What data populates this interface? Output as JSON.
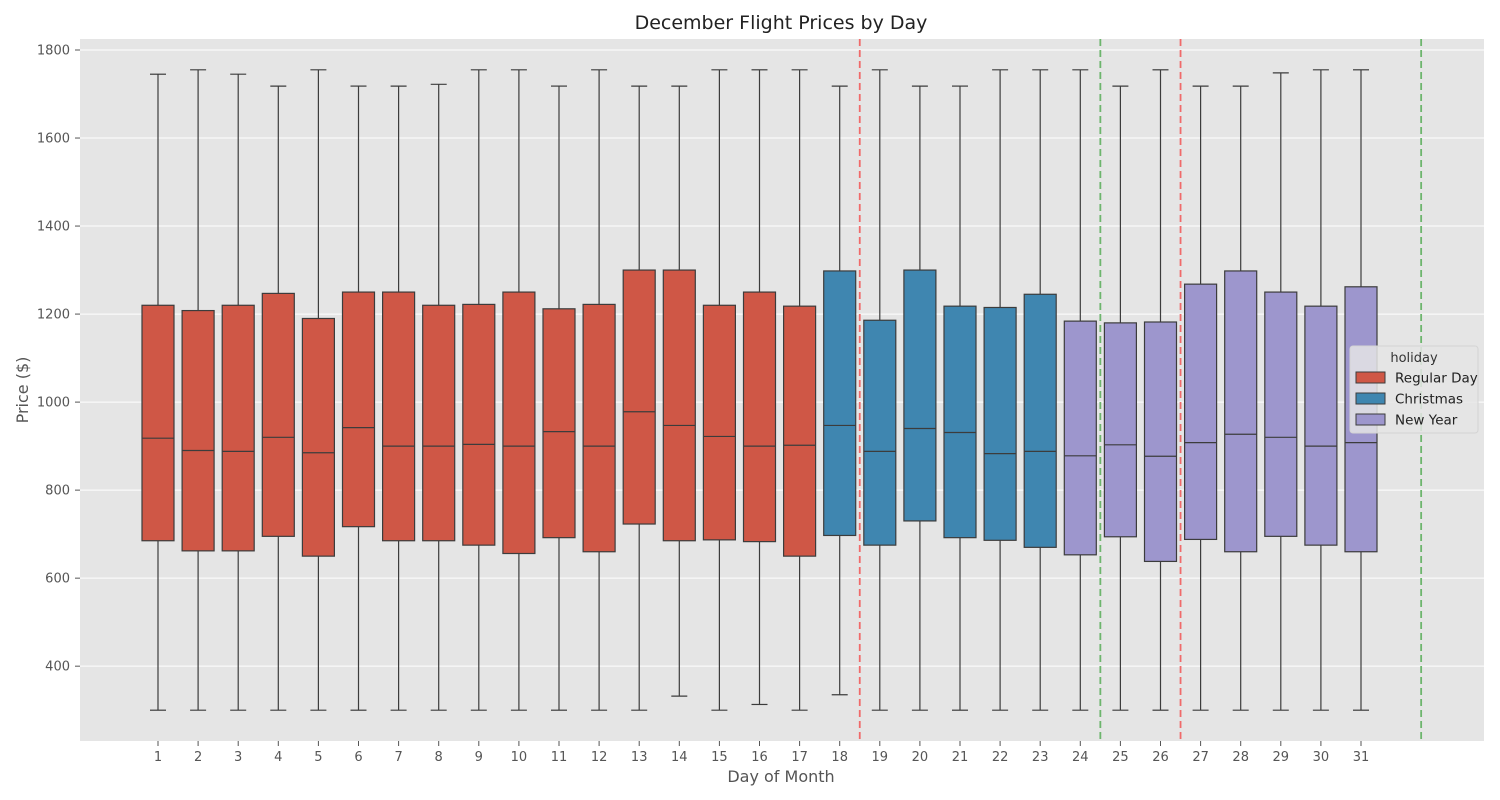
{
  "chart_data": {
    "type": "box",
    "title": "December Flight Prices by Day",
    "xlabel": "Day of Month",
    "ylabel": "Price ($)",
    "ylim": [
      230,
      1825
    ],
    "yticks": [
      400,
      600,
      800,
      1000,
      1200,
      1400,
      1600,
      1800
    ],
    "grid": true,
    "legend": {
      "title": "holiday",
      "placement": "right",
      "entries": [
        "Regular Day",
        "Christmas",
        "New Year"
      ]
    },
    "group_colors": {
      "Regular Day": "#cf5746",
      "Christmas": "#3f86b0",
      "New Year": "#9d96cd"
    },
    "reference_lines": [
      {
        "x": 18.5,
        "color": "#f06a6a"
      },
      {
        "x": 24.5,
        "color": "#6db56d"
      },
      {
        "x": 26.5,
        "color": "#f06a6a"
      },
      {
        "x": 32.5,
        "color": "#6db56d"
      }
    ],
    "boxes": [
      {
        "day": "1",
        "group": "Regular Day",
        "min": 300,
        "q1": 685,
        "median": 918,
        "q3": 1220,
        "max": 1745
      },
      {
        "day": "2",
        "group": "Regular Day",
        "min": 300,
        "q1": 662,
        "median": 890,
        "q3": 1208,
        "max": 1755
      },
      {
        "day": "3",
        "group": "Regular Day",
        "min": 300,
        "q1": 662,
        "median": 888,
        "q3": 1220,
        "max": 1745
      },
      {
        "day": "4",
        "group": "Regular Day",
        "min": 300,
        "q1": 695,
        "median": 920,
        "q3": 1247,
        "max": 1718
      },
      {
        "day": "5",
        "group": "Regular Day",
        "min": 300,
        "q1": 650,
        "median": 885,
        "q3": 1190,
        "max": 1755
      },
      {
        "day": "6",
        "group": "Regular Day",
        "min": 300,
        "q1": 717,
        "median": 942,
        "q3": 1250,
        "max": 1718
      },
      {
        "day": "7",
        "group": "Regular Day",
        "min": 300,
        "q1": 685,
        "median": 900,
        "q3": 1250,
        "max": 1718
      },
      {
        "day": "8",
        "group": "Regular Day",
        "min": 300,
        "q1": 685,
        "median": 900,
        "q3": 1220,
        "max": 1722
      },
      {
        "day": "9",
        "group": "Regular Day",
        "min": 300,
        "q1": 675,
        "median": 904,
        "q3": 1222,
        "max": 1755
      },
      {
        "day": "10",
        "group": "Regular Day",
        "min": 300,
        "q1": 656,
        "median": 900,
        "q3": 1250,
        "max": 1755
      },
      {
        "day": "11",
        "group": "Regular Day",
        "min": 300,
        "q1": 692,
        "median": 933,
        "q3": 1212,
        "max": 1718
      },
      {
        "day": "12",
        "group": "Regular Day",
        "min": 300,
        "q1": 660,
        "median": 900,
        "q3": 1222,
        "max": 1755
      },
      {
        "day": "13",
        "group": "Regular Day",
        "min": 300,
        "q1": 723,
        "median": 978,
        "q3": 1300,
        "max": 1718
      },
      {
        "day": "14",
        "group": "Regular Day",
        "min": 332,
        "q1": 685,
        "median": 947,
        "q3": 1300,
        "max": 1718
      },
      {
        "day": "15",
        "group": "Regular Day",
        "min": 300,
        "q1": 687,
        "median": 922,
        "q3": 1220,
        "max": 1755
      },
      {
        "day": "16",
        "group": "Regular Day",
        "min": 313,
        "q1": 683,
        "median": 900,
        "q3": 1250,
        "max": 1755
      },
      {
        "day": "17",
        "group": "Regular Day",
        "min": 300,
        "q1": 650,
        "median": 902,
        "q3": 1218,
        "max": 1755
      },
      {
        "day": "18",
        "group": "Christmas",
        "min": 335,
        "q1": 697,
        "median": 947,
        "q3": 1298,
        "max": 1718
      },
      {
        "day": "19",
        "group": "Christmas",
        "min": 300,
        "q1": 675,
        "median": 888,
        "q3": 1186,
        "max": 1755
      },
      {
        "day": "20",
        "group": "Christmas",
        "min": 300,
        "q1": 730,
        "median": 940,
        "q3": 1300,
        "max": 1718
      },
      {
        "day": "21",
        "group": "Christmas",
        "min": 300,
        "q1": 692,
        "median": 931,
        "q3": 1218,
        "max": 1718
      },
      {
        "day": "22",
        "group": "Christmas",
        "min": 300,
        "q1": 686,
        "median": 883,
        "q3": 1215,
        "max": 1755
      },
      {
        "day": "23",
        "group": "Christmas",
        "min": 300,
        "q1": 670,
        "median": 888,
        "q3": 1245,
        "max": 1755
      },
      {
        "day": "24",
        "group": "New Year",
        "min": 300,
        "q1": 653,
        "median": 878,
        "q3": 1184,
        "max": 1755
      },
      {
        "day": "25",
        "group": "New Year",
        "min": 300,
        "q1": 694,
        "median": 903,
        "q3": 1180,
        "max": 1718
      },
      {
        "day": "26",
        "group": "New Year",
        "min": 300,
        "q1": 638,
        "median": 877,
        "q3": 1182,
        "max": 1755
      },
      {
        "day": "27",
        "group": "New Year",
        "min": 300,
        "q1": 688,
        "median": 908,
        "q3": 1268,
        "max": 1718
      },
      {
        "day": "28",
        "group": "New Year",
        "min": 300,
        "q1": 660,
        "median": 927,
        "q3": 1298,
        "max": 1718
      },
      {
        "day": "29",
        "group": "New Year",
        "min": 300,
        "q1": 695,
        "median": 920,
        "q3": 1250,
        "max": 1748
      },
      {
        "day": "30",
        "group": "New Year",
        "min": 300,
        "q1": 675,
        "median": 900,
        "q3": 1218,
        "max": 1755
      },
      {
        "day": "31",
        "group": "New Year",
        "min": 300,
        "q1": 660,
        "median": 908,
        "q3": 1262,
        "max": 1755
      }
    ]
  }
}
